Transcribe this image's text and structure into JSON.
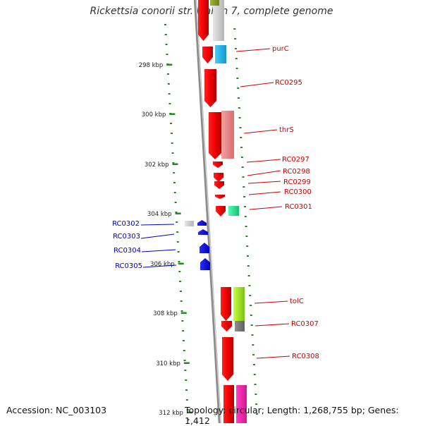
{
  "title": "Rickettsia conorii str. Malish 7, complete genome",
  "footer": {
    "accession": "Accession: NC_003103",
    "topology": "Topology: circular; Length: 1,268,755 bp; Genes: 1,412"
  },
  "colors": {
    "forward_label": "#cc0000",
    "reverse_label": "#0000bb",
    "tick": "#228b22",
    "backbone": "#8c8c8c"
  },
  "kbp_ticks": [
    "298 kbp",
    "300 kbp",
    "302 kbp",
    "304 kbp",
    "306 kbp",
    "308 kbp",
    "310 kbp",
    "312 kbp"
  ],
  "forward_genes": [
    {
      "label": "purC"
    },
    {
      "label": "RC0295"
    },
    {
      "label": "thrS"
    },
    {
      "label": "RC0297"
    },
    {
      "label": "RC0298"
    },
    {
      "label": "RC0299"
    },
    {
      "label": "RC0300"
    },
    {
      "label": "RC0301"
    },
    {
      "label": "tolC"
    },
    {
      "label": "RC0307"
    },
    {
      "label": "RC0308"
    }
  ],
  "reverse_genes": [
    {
      "label": "RC0302"
    },
    {
      "label": "RC0303"
    },
    {
      "label": "RC0304"
    },
    {
      "label": "RC0305"
    }
  ]
}
